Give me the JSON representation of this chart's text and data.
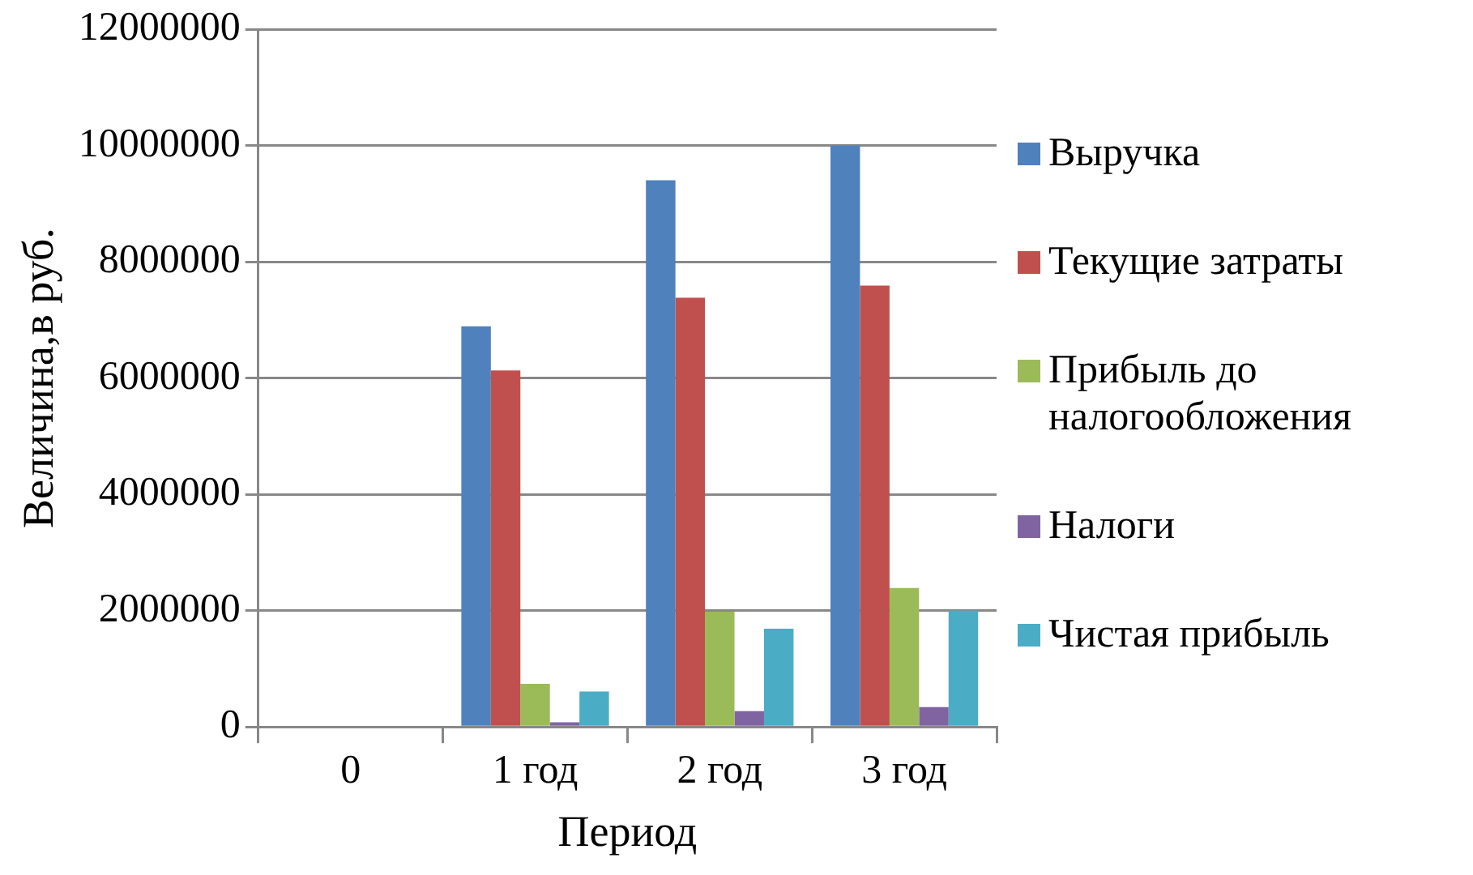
{
  "chart_data": {
    "type": "bar",
    "xlabel": "Период",
    "ylabel": "Величина,в руб.",
    "categories": [
      "0",
      "1 год",
      "2 год",
      "3 год"
    ],
    "series": [
      {
        "name": "Выручка",
        "color": "#4f81bd",
        "values": [
          0,
          6890000,
          9400000,
          10000000
        ]
      },
      {
        "name": "Текущие затраты",
        "color": "#c0504d",
        "values": [
          0,
          6130000,
          7380000,
          7590000
        ]
      },
      {
        "name": "Прибыль до налогообложения",
        "color": "#9bbb59",
        "values": [
          0,
          740000,
          1980000,
          2390000
        ]
      },
      {
        "name": "Налоги",
        "color": "#8064a2",
        "values": [
          0,
          80000,
          270000,
          340000
        ]
      },
      {
        "name": "Чистая прибыль",
        "color": "#4bacc6",
        "values": [
          0,
          610000,
          1690000,
          2000000
        ]
      }
    ],
    "ylim": [
      0,
      12000000
    ],
    "yticks": [
      0,
      2000000,
      4000000,
      6000000,
      8000000,
      10000000,
      12000000
    ],
    "grid": "y",
    "legend": "right"
  }
}
